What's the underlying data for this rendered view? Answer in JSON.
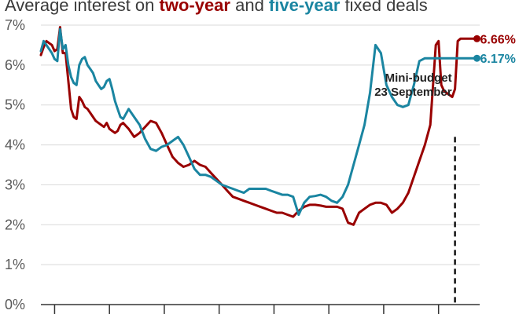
{
  "chart_data": {
    "type": "line",
    "title": {
      "prefix": "Average interest on ",
      "series1": "two-year",
      "middle": " and ",
      "series2": "five-year",
      "suffix": " fixed deals"
    },
    "xlabel": "",
    "ylabel": "",
    "ylim": [
      0,
      7
    ],
    "y_ticks": [
      "0%",
      "1%",
      "2%",
      "3%",
      "4%",
      "5%",
      "6%",
      "7%"
    ],
    "grid": "horizontal",
    "legend": "none",
    "x_range": [
      0,
      160
    ],
    "x_ticks": [
      5,
      25,
      45,
      65,
      85,
      105,
      125,
      145
    ],
    "series": [
      {
        "key": "two_year",
        "name": "two-year",
        "color": "#990000",
        "end_label": "6.66%",
        "x": [
          0,
          1,
          2,
          3,
          4,
          5,
          6,
          7,
          8,
          9,
          10,
          11,
          12,
          13,
          14,
          15,
          16,
          17,
          18,
          19,
          20,
          21,
          22,
          23,
          24,
          25,
          26,
          27,
          28,
          29,
          30,
          32,
          34,
          36,
          38,
          40,
          42,
          44,
          46,
          48,
          50,
          52,
          54,
          56,
          58,
          60,
          62,
          64,
          66,
          68,
          70,
          72,
          74,
          76,
          78,
          80,
          82,
          84,
          86,
          88,
          90,
          92,
          94,
          96,
          98,
          100,
          102,
          104,
          106,
          108,
          110,
          112,
          114,
          116,
          118,
          120,
          122,
          124,
          126,
          128,
          130,
          132,
          134,
          136,
          138,
          140,
          142,
          143,
          144,
          145,
          146,
          147,
          148,
          149,
          150,
          151,
          152,
          153,
          154,
          155,
          156,
          157,
          158,
          159
        ],
        "y": [
          6.25,
          6.45,
          6.6,
          6.55,
          6.5,
          6.35,
          6.4,
          6.95,
          6.3,
          6.3,
          5.6,
          4.9,
          4.7,
          4.65,
          5.2,
          5.1,
          4.95,
          4.9,
          4.8,
          4.7,
          4.6,
          4.55,
          4.5,
          4.45,
          4.55,
          4.4,
          4.35,
          4.3,
          4.35,
          4.5,
          4.55,
          4.4,
          4.2,
          4.3,
          4.45,
          4.6,
          4.55,
          4.3,
          4.0,
          3.7,
          3.55,
          3.45,
          3.5,
          3.6,
          3.5,
          3.45,
          3.3,
          3.15,
          3.0,
          2.85,
          2.7,
          2.65,
          2.6,
          2.55,
          2.5,
          2.45,
          2.4,
          2.35,
          2.3,
          2.3,
          2.25,
          2.2,
          2.35,
          2.45,
          2.5,
          2.5,
          2.48,
          2.45,
          2.45,
          2.45,
          2.4,
          2.05,
          2.0,
          2.3,
          2.4,
          2.5,
          2.55,
          2.55,
          2.5,
          2.3,
          2.4,
          2.55,
          2.8,
          3.2,
          3.6,
          4.0,
          4.5,
          5.5,
          6.5,
          6.6,
          5.5,
          5.35,
          5.3,
          5.25,
          5.2,
          5.4,
          6.6,
          6.66,
          6.66,
          6.66,
          6.66,
          6.66,
          6.66,
          6.66
        ]
      },
      {
        "key": "five_year",
        "name": "five-year",
        "color": "#1a85a1",
        "end_label": "6.17%",
        "x": [
          0,
          1,
          2,
          3,
          4,
          5,
          6,
          7,
          8,
          9,
          10,
          11,
          12,
          13,
          14,
          15,
          16,
          17,
          18,
          19,
          20,
          21,
          22,
          23,
          24,
          25,
          26,
          27,
          28,
          29,
          30,
          32,
          34,
          36,
          38,
          40,
          42,
          44,
          46,
          48,
          50,
          52,
          54,
          56,
          58,
          60,
          62,
          64,
          66,
          68,
          70,
          72,
          74,
          76,
          78,
          80,
          82,
          84,
          86,
          88,
          90,
          92,
          94,
          96,
          98,
          100,
          102,
          104,
          106,
          108,
          110,
          112,
          114,
          116,
          118,
          120,
          122,
          124,
          126,
          128,
          130,
          132,
          134,
          136,
          138,
          140,
          142,
          143,
          144,
          145,
          146,
          147,
          148,
          149,
          150,
          151,
          152,
          153,
          154,
          155,
          156,
          157,
          158,
          159
        ],
        "y": [
          6.35,
          6.6,
          6.5,
          6.4,
          6.3,
          6.15,
          6.1,
          6.9,
          6.4,
          6.5,
          6.0,
          5.7,
          5.55,
          5.5,
          6.0,
          6.15,
          6.2,
          6.0,
          5.9,
          5.8,
          5.6,
          5.5,
          5.4,
          5.45,
          5.6,
          5.65,
          5.4,
          5.1,
          4.9,
          4.7,
          4.65,
          4.9,
          4.7,
          4.5,
          4.15,
          3.9,
          3.85,
          3.95,
          4.0,
          4.1,
          4.2,
          4.0,
          3.7,
          3.4,
          3.25,
          3.25,
          3.2,
          3.1,
          3.0,
          2.95,
          2.9,
          2.85,
          2.8,
          2.9,
          2.9,
          2.9,
          2.9,
          2.85,
          2.8,
          2.75,
          2.75,
          2.7,
          2.25,
          2.55,
          2.7,
          2.72,
          2.75,
          2.7,
          2.6,
          2.55,
          2.7,
          3.0,
          3.5,
          4.0,
          4.5,
          5.3,
          6.5,
          6.3,
          5.5,
          5.2,
          5.0,
          4.95,
          5.0,
          5.5,
          6.1,
          6.17,
          6.17,
          6.17,
          6.17,
          6.17,
          6.17,
          6.17,
          6.17,
          6.17,
          6.17,
          6.17,
          6.17,
          6.17,
          6.17,
          6.17,
          6.17,
          6.17,
          6.17,
          6.17
        ]
      }
    ],
    "annotation": {
      "x": 151,
      "lines": [
        "Mini-budget",
        "23 September"
      ]
    }
  }
}
